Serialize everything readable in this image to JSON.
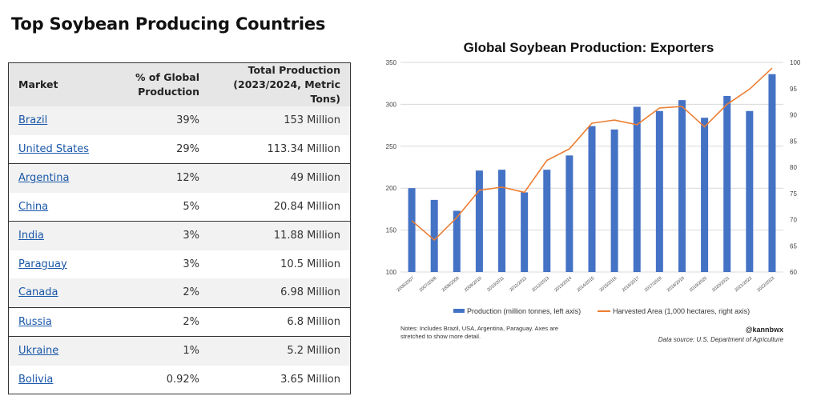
{
  "page": {
    "title": "Top Soybean Producing Countries"
  },
  "table": {
    "headers": {
      "market": "Market",
      "share_line1": "% of Global",
      "share_line2": "Production",
      "total_line1": "Total Production",
      "total_line2": "(2023/2024, Metric Tons)"
    },
    "rows": [
      {
        "market": "Brazil",
        "share": "39%",
        "total": "153 Million"
      },
      {
        "market": "United States",
        "share": "29%",
        "total": "113.34 Million"
      },
      {
        "market": "Argentina",
        "share": "12%",
        "total": "49 Million"
      },
      {
        "market": "China",
        "share": "5%",
        "total": "20.84 Million"
      },
      {
        "market": "India",
        "share": "3%",
        "total": "11.88 Million"
      },
      {
        "market": "Paraguay",
        "share": "3%",
        "total": "10.5 Million"
      },
      {
        "market": "Canada",
        "share": "2%",
        "total": "6.98 Million"
      },
      {
        "market": "Russia",
        "share": "2%",
        "total": "6.8 Million"
      },
      {
        "market": "Ukraine",
        "share": "1%",
        "total": "5.2 Million"
      },
      {
        "market": "Bolivia",
        "share": "0.92%",
        "total": "3.65 Million"
      }
    ]
  },
  "chart_data": {
    "type": "bar",
    "title": "Global Soybean Production: Exporters",
    "categories": [
      "2006/2007",
      "2007/2008",
      "2008/2009",
      "2009/2010",
      "2010/2011",
      "2011/2012",
      "2012/2013",
      "2013/2014",
      "2014/2015",
      "2015/2016",
      "2016/2017",
      "2017/2018",
      "2018/2019",
      "2019/2020",
      "2020/2021",
      "2021/2022",
      "2022/2023"
    ],
    "series": [
      {
        "name": "Production (million tonnes, left axis)",
        "axis": "left",
        "kind": "bar",
        "color": "#4472c4",
        "values": [
          200,
          186,
          173,
          221,
          222,
          195,
          222,
          239,
          274,
          270,
          297,
          292,
          305,
          284,
          310,
          292,
          336
        ]
      },
      {
        "name": "Harvested Area (1,000 hectares, right axis)",
        "axis": "right",
        "kind": "line",
        "color": "#ed7d31",
        "values": [
          69.8,
          66.1,
          70.4,
          75.6,
          76.2,
          75.2,
          81.3,
          83.5,
          88.4,
          89.0,
          88.1,
          91.3,
          91.6,
          87.7,
          92.0,
          94.9,
          98.9
        ]
      }
    ],
    "ylim_left": [
      100,
      350
    ],
    "yticks_left": [
      100,
      150,
      200,
      250,
      300,
      350
    ],
    "ylim_right": [
      60,
      100
    ],
    "yticks_right": [
      60,
      65,
      70,
      75,
      80,
      85,
      90,
      95,
      100
    ],
    "grid": true,
    "legend": "bottom",
    "notes": "Notes: Includes Brazil, USA, Argentina, Paraguay. Axes are stretched to show more detail.",
    "handle": "@kannbwx",
    "source": "Data source: U.S. Department of Agriculture"
  }
}
